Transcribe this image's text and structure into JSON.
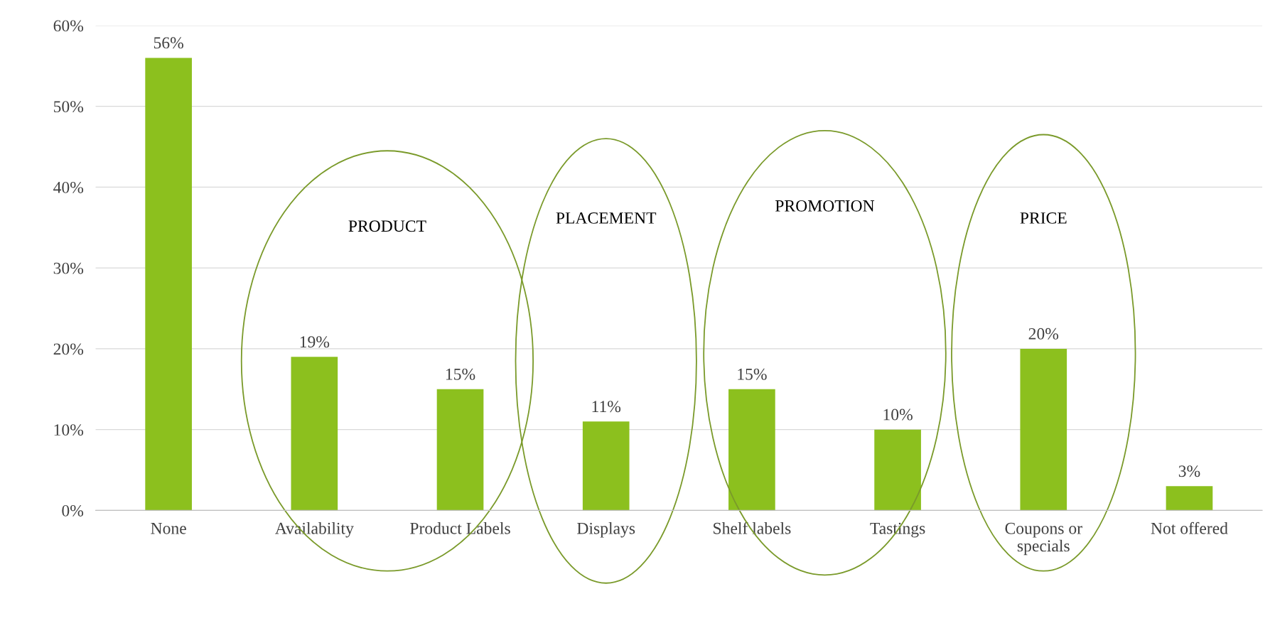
{
  "chart_data": {
    "type": "bar",
    "categories": [
      "None",
      "Availability",
      "Product Labels",
      "Displays",
      "Shelf labels",
      "Tastings",
      "Coupons or\nspecials",
      "Not offered"
    ],
    "values": [
      56,
      19,
      15,
      11,
      15,
      10,
      20,
      3
    ],
    "color": "#8cc01e",
    "value_labels": [
      "56%",
      "19%",
      "15%",
      "11%",
      "15%",
      "10%",
      "20%",
      "3%"
    ],
    "ylim": [
      0,
      60
    ],
    "yticks": [
      {
        "value": 0,
        "label": "0%"
      },
      {
        "value": 10,
        "label": "10%"
      },
      {
        "value": 20,
        "label": "20%"
      },
      {
        "value": 30,
        "label": "30%"
      },
      {
        "value": 40,
        "label": "40%"
      },
      {
        "value": 50,
        "label": "50%"
      },
      {
        "value": 60,
        "label": "60%"
      }
    ],
    "grid": "y",
    "annotations": [
      "PRODUCT",
      "PLACEMENT",
      "PROMOTION",
      "PRICE"
    ]
  }
}
